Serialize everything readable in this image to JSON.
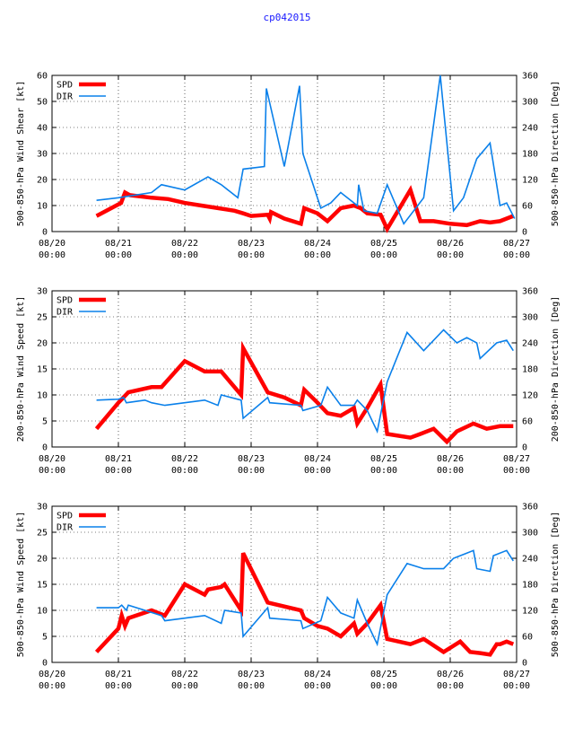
{
  "page": {
    "title": "cp042015"
  },
  "colors": {
    "spd": "#ff0000",
    "dir": "#0a80ea",
    "axis": "#000000",
    "grid": "#000000",
    "title": "#1a1aff"
  },
  "chart_data": [
    {
      "type": "line",
      "title": "",
      "xlabel": "",
      "ylabel": "500-850-hPa Wind Shear [kt]",
      "y2label": "500-850-hPa Direction [Deg]",
      "ylim": [
        0,
        60
      ],
      "yticks": [
        0,
        10,
        20,
        30,
        40,
        50,
        60
      ],
      "y2lim": [
        0,
        360
      ],
      "y2ticks": [
        0,
        60,
        120,
        180,
        240,
        300,
        360
      ],
      "xlim": [
        0,
        7
      ],
      "xticks": [
        {
          "v": 0,
          "l1": "08/20",
          "l2": "00:00"
        },
        {
          "v": 1,
          "l1": "08/21",
          "l2": "00:00"
        },
        {
          "v": 2,
          "l1": "08/22",
          "l2": "00:00"
        },
        {
          "v": 3,
          "l1": "08/23",
          "l2": "00:00"
        },
        {
          "v": 4,
          "l1": "08/24",
          "l2": "00:00"
        },
        {
          "v": 5,
          "l1": "08/25",
          "l2": "00:00"
        },
        {
          "v": 6,
          "l1": "08/26",
          "l2": "00:00"
        },
        {
          "v": 7,
          "l1": "08/27",
          "l2": "00:00"
        }
      ],
      "legend": [
        "SPD",
        "DIR"
      ],
      "series": [
        {
          "name": "SPD",
          "axis": "left",
          "x": [
            0.67,
            1.04,
            1.1,
            1.17,
            1.5,
            1.75,
            2.0,
            2.25,
            2.5,
            2.75,
            2.88,
            3.0,
            3.25,
            3.28,
            3.3,
            3.5,
            3.75,
            3.8,
            4.0,
            4.15,
            4.35,
            4.55,
            4.65,
            4.75,
            4.95,
            5.05,
            5.4,
            5.55,
            5.75,
            6.0,
            6.25,
            6.45,
            6.6,
            6.75,
            6.85,
            6.95
          ],
          "values": [
            6,
            11,
            15,
            14,
            13,
            12.5,
            11,
            10,
            9,
            8,
            7,
            6,
            6.5,
            5,
            7.5,
            5,
            3,
            9,
            7,
            4,
            9,
            10,
            9,
            7,
            6.5,
            1,
            16,
            4,
            4,
            3,
            2.5,
            4,
            3.5,
            4,
            5,
            6
          ]
        },
        {
          "name": "DIR",
          "axis": "right",
          "x": [
            0.67,
            1.0,
            1.25,
            1.5,
            1.65,
            2.0,
            2.35,
            2.55,
            2.8,
            2.88,
            3.2,
            3.23,
            3.5,
            3.73,
            3.78,
            4.05,
            4.2,
            4.35,
            4.6,
            4.62,
            4.7,
            4.9,
            5.05,
            5.3,
            5.6,
            5.85,
            6.05,
            6.2,
            6.4,
            6.6,
            6.75,
            6.85,
            6.97
          ],
          "values": [
            72,
            78,
            84,
            90,
            108,
            96,
            126,
            108,
            78,
            144,
            150,
            330,
            150,
            336,
            180,
            54,
            66,
            90,
            60,
            108,
            48,
            42,
            108,
            18,
            78,
            360,
            48,
            78,
            168,
            204,
            60,
            66,
            30
          ]
        }
      ]
    },
    {
      "type": "line",
      "title": "",
      "xlabel": "",
      "ylabel": "200-850-hPa Wind Speed [kt]",
      "y2label": "200-850-hPa Direction [Deg]",
      "ylim": [
        0,
        30
      ],
      "yticks": [
        0,
        5,
        10,
        15,
        20,
        25,
        30
      ],
      "y2lim": [
        0,
        360
      ],
      "y2ticks": [
        0,
        60,
        120,
        180,
        240,
        300,
        360
      ],
      "xlim": [
        0,
        7
      ],
      "xticks": [
        {
          "v": 0,
          "l1": "08/20",
          "l2": "00:00"
        },
        {
          "v": 1,
          "l1": "08/21",
          "l2": "00:00"
        },
        {
          "v": 2,
          "l1": "08/22",
          "l2": "00:00"
        },
        {
          "v": 3,
          "l1": "08/23",
          "l2": "00:00"
        },
        {
          "v": 4,
          "l1": "08/24",
          "l2": "00:00"
        },
        {
          "v": 5,
          "l1": "08/25",
          "l2": "00:00"
        },
        {
          "v": 6,
          "l1": "08/26",
          "l2": "00:00"
        },
        {
          "v": 7,
          "l1": "08/27",
          "l2": "00:00"
        }
      ],
      "legend": [
        "SPD",
        "DIR"
      ],
      "series": [
        {
          "name": "SPD",
          "axis": "left",
          "x": [
            0.67,
            1.0,
            1.15,
            1.5,
            1.65,
            2.0,
            2.3,
            2.55,
            2.85,
            2.88,
            3.25,
            3.5,
            3.75,
            3.8,
            4.0,
            4.15,
            4.35,
            4.55,
            4.6,
            4.75,
            4.95,
            5.05,
            5.4,
            5.55,
            5.75,
            5.95,
            6.1,
            6.35,
            6.55,
            6.75,
            6.95
          ],
          "values": [
            3.5,
            8.5,
            10.5,
            11.5,
            11.5,
            16.5,
            14.5,
            14.5,
            10,
            19,
            10.5,
            9.5,
            8,
            11,
            8.5,
            6.5,
            6,
            7.5,
            4.5,
            7.5,
            12,
            2.5,
            1.8,
            2.5,
            3.5,
            1,
            3,
            4.5,
            3.5,
            4,
            4
          ]
        },
        {
          "name": "DIR",
          "axis": "right",
          "x": [
            0.67,
            1.0,
            1.08,
            1.12,
            1.4,
            1.5,
            1.7,
            2.0,
            2.3,
            2.5,
            2.55,
            2.85,
            2.88,
            3.25,
            3.28,
            3.75,
            3.78,
            4.05,
            4.15,
            4.35,
            4.55,
            4.6,
            4.75,
            4.9,
            5.05,
            5.35,
            5.6,
            5.9,
            6.1,
            6.25,
            6.4,
            6.45,
            6.7,
            6.85,
            6.95
          ],
          "values": [
            108,
            110,
            114,
            102,
            108,
            102,
            96,
            102,
            108,
            96,
            120,
            108,
            66,
            114,
            102,
            96,
            84,
            96,
            138,
            96,
            96,
            108,
            84,
            36,
            150,
            264,
            222,
            270,
            240,
            252,
            240,
            204,
            240,
            246,
            222
          ]
        }
      ]
    },
    {
      "type": "line",
      "title": "",
      "xlabel": "",
      "ylabel": "500-850-hPa Wind Speed [kt]",
      "y2label": "500-850-hPa Direction [Deg]",
      "ylim": [
        0,
        30
      ],
      "yticks": [
        0,
        5,
        10,
        15,
        20,
        25,
        30
      ],
      "y2lim": [
        0,
        360
      ],
      "y2ticks": [
        0,
        60,
        120,
        180,
        240,
        300,
        360
      ],
      "xlim": [
        0,
        7
      ],
      "xticks": [
        {
          "v": 0,
          "l1": "08/20",
          "l2": "00:00"
        },
        {
          "v": 1,
          "l1": "08/21",
          "l2": "00:00"
        },
        {
          "v": 2,
          "l1": "08/22",
          "l2": "00:00"
        },
        {
          "v": 3,
          "l1": "08/23",
          "l2": "00:00"
        },
        {
          "v": 4,
          "l1": "08/24",
          "l2": "00:00"
        },
        {
          "v": 5,
          "l1": "08/25",
          "l2": "00:00"
        },
        {
          "v": 6,
          "l1": "08/26",
          "l2": "00:00"
        },
        {
          "v": 7,
          "l1": "08/27",
          "l2": "00:00"
        }
      ],
      "legend": [
        "SPD",
        "DIR"
      ],
      "series": [
        {
          "name": "SPD",
          "axis": "left",
          "x": [
            0.67,
            1.0,
            1.05,
            1.1,
            1.15,
            1.5,
            1.7,
            2.0,
            2.3,
            2.35,
            2.55,
            2.6,
            2.85,
            2.88,
            3.25,
            3.75,
            3.8,
            4.0,
            4.15,
            4.35,
            4.55,
            4.6,
            4.75,
            4.95,
            5.05,
            5.4,
            5.6,
            5.9,
            6.15,
            6.3,
            6.45,
            6.6,
            6.7,
            6.75,
            6.85,
            6.95
          ],
          "values": [
            2,
            6.5,
            9,
            7,
            8.5,
            10,
            9,
            15,
            13,
            14,
            14.5,
            15,
            10,
            21,
            11.5,
            10,
            8.5,
            7,
            6.5,
            5,
            7.5,
            5.5,
            7.5,
            11,
            4.5,
            3.5,
            4.5,
            2,
            4,
            2,
            1.8,
            1.5,
            3.5,
            3.5,
            4,
            3.5
          ]
        },
        {
          "name": "DIR",
          "axis": "right",
          "x": [
            0.67,
            1.0,
            1.05,
            1.12,
            1.15,
            1.65,
            1.7,
            2.0,
            2.3,
            2.55,
            2.6,
            2.85,
            2.88,
            3.25,
            3.28,
            3.75,
            3.78,
            4.05,
            4.15,
            4.35,
            4.55,
            4.6,
            4.75,
            4.9,
            5.05,
            5.35,
            5.6,
            5.9,
            6.05,
            6.25,
            6.35,
            6.4,
            6.6,
            6.65,
            6.85,
            6.95
          ],
          "values": [
            126,
            126,
            132,
            120,
            132,
            108,
            96,
            102,
            108,
            90,
            120,
            114,
            60,
            126,
            102,
            96,
            78,
            96,
            150,
            114,
            102,
            144,
            90,
            42,
            156,
            228,
            216,
            216,
            240,
            252,
            258,
            216,
            210,
            246,
            258,
            234
          ]
        }
      ]
    }
  ]
}
